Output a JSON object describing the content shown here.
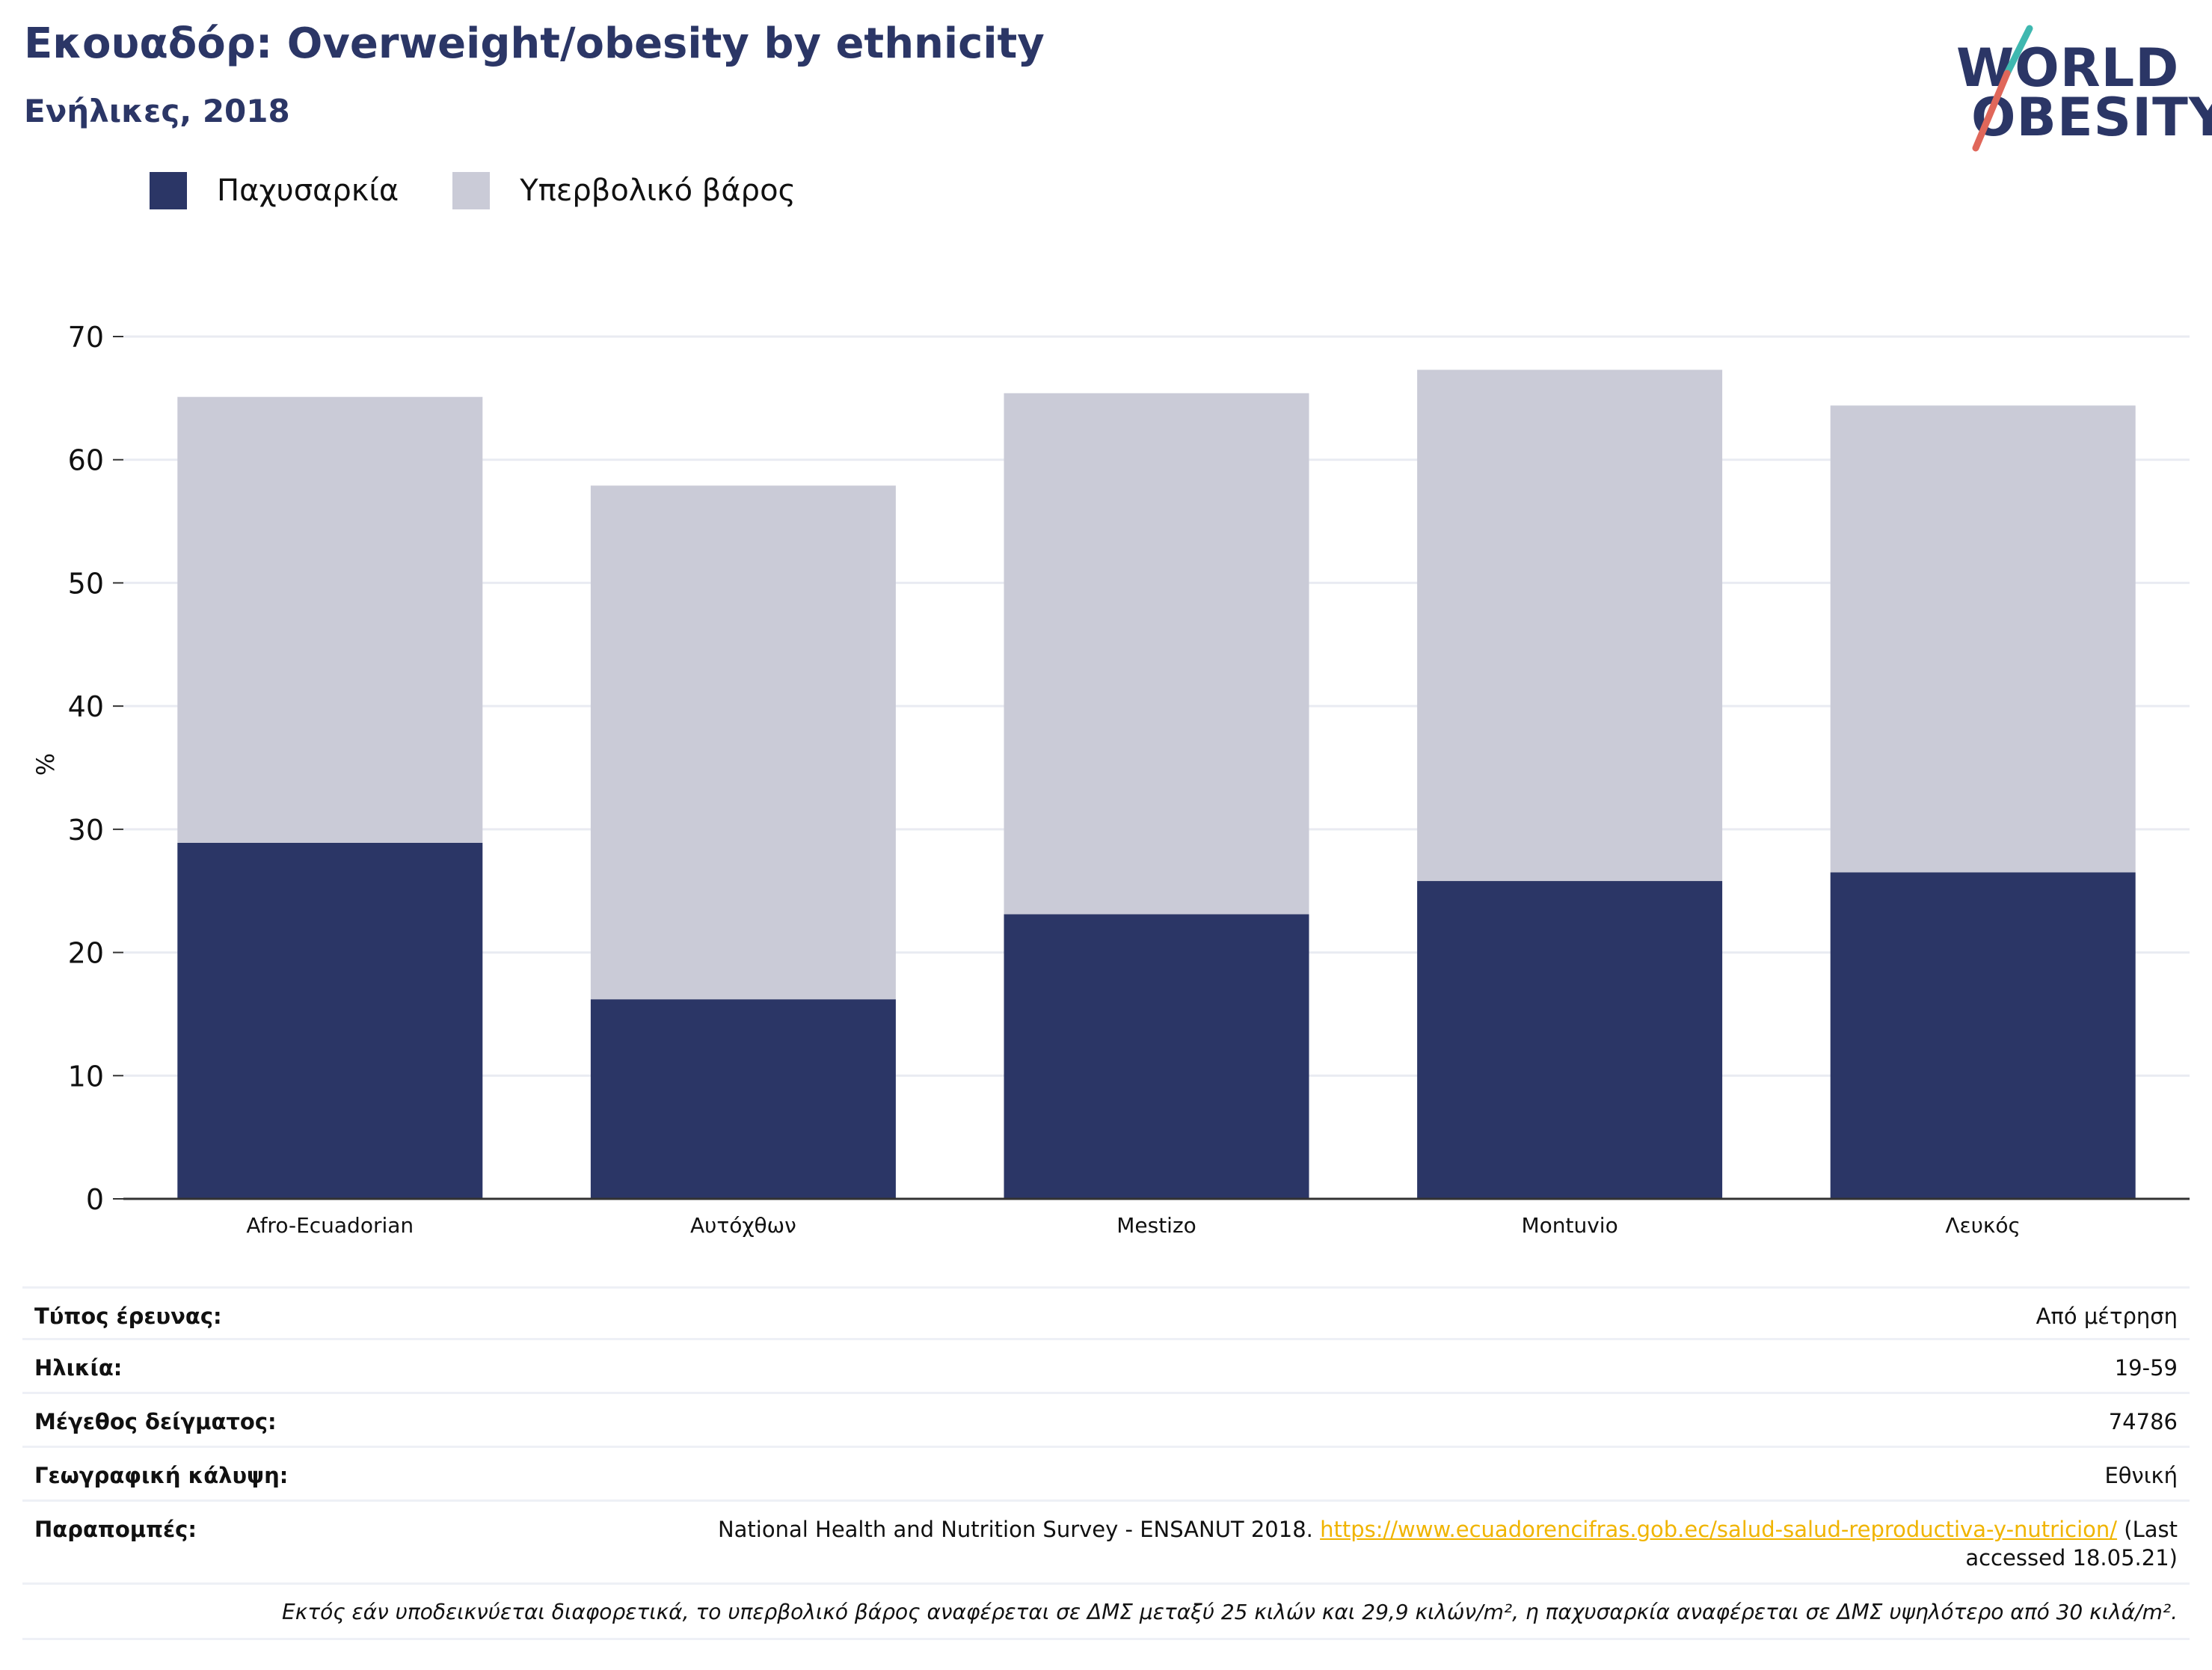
{
  "header": {
    "title": "Εκουαδόρ: Overweight/obesity by ethnicity",
    "subtitle": "Ενήλικες, 2018",
    "logo_line1": "WORLD",
    "logo_line2": "OBESITY"
  },
  "colors": {
    "obesity": "#2b3666",
    "overweight": "#cacbd7",
    "brand": "#2b3666",
    "logo_teal": "#3fb8b0",
    "logo_red": "#e0675a",
    "link": "#f0b400"
  },
  "chart_data": {
    "type": "bar",
    "stacked": true,
    "categories": [
      "Afro-Ecuadorian",
      "Αυτόχθων",
      "Mestizo",
      "Montuvio",
      "Λευκός"
    ],
    "series": [
      {
        "name": "Παχυσαρκία",
        "values": [
          28.9,
          16.2,
          23.1,
          25.8,
          26.5
        ]
      },
      {
        "name": "Υπερβολικό βάρος",
        "values": [
          36.2,
          41.7,
          42.3,
          41.5,
          37.9
        ]
      }
    ],
    "ylabel": "%",
    "ylim": [
      0,
      70
    ],
    "yticks": [
      "0",
      "10",
      "20",
      "30",
      "40",
      "50",
      "60",
      "70"
    ],
    "grid": true,
    "legend_position": "top-left"
  },
  "info": {
    "rows": [
      {
        "key": "Τύπος έρευνας:",
        "value": "Από μέτρηση"
      },
      {
        "key": "Ηλικία:",
        "value": "19-59"
      },
      {
        "key": "Μέγεθος δείγματος:",
        "value": "74786"
      },
      {
        "key": "Γεωγραφική κάλυψη:",
        "value": "Εθνική"
      }
    ],
    "references_key": "Παραπομπές:",
    "references_text": "National Health and Nutrition Survey - ENSANUT 2018.",
    "references_link": "https://www.ecuadorencifras.gob.ec/salud-salud-reproductiva-y-nutricion/",
    "references_suffix": "(Last accessed 18.05.21)",
    "footnote": "Εκτός εάν υποδεικνύεται διαφορετικά, το υπερβολικό βάρος αναφέρεται σε ΔΜΣ μεταξύ 25 κιλών και 29,9 κιλών/m², η παχυσαρκία αναφέρεται σε ΔΜΣ υψηλότερο από 30 κιλά/m²."
  }
}
